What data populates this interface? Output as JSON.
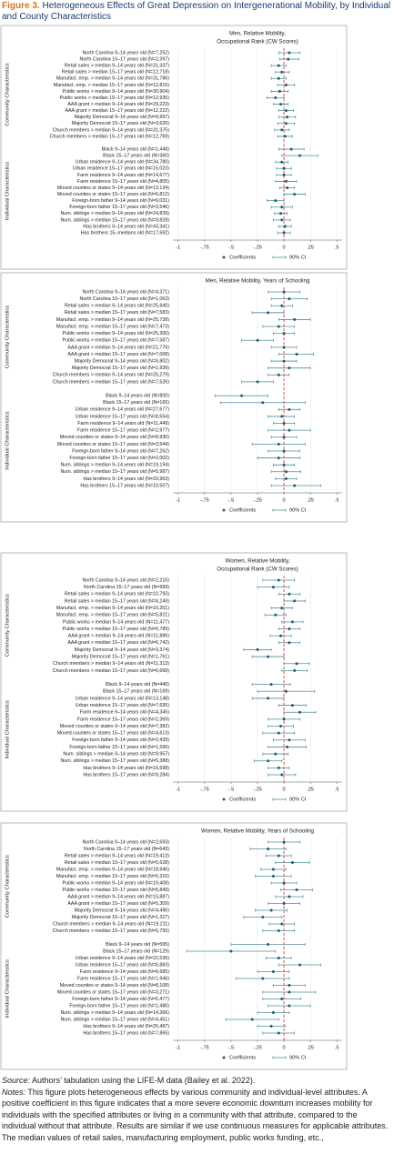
{
  "figure": {
    "label": "Figure 3.",
    "title": "Heterogeneous Effects of Great Depression on Intergenerational Mobility, by Individual and County Characteristics"
  },
  "chart_data": [
    {
      "type": "coefplot",
      "title": [
        "Men, Relative Mobility,",
        "Occupational Rank (CW Scores)"
      ],
      "xlim": [
        -1.05,
        0.55
      ],
      "xticks": [
        -1,
        {
          "value": -0.75,
          "label": "-.75"
        },
        {
          "value": -0.5,
          "label": "-.5"
        },
        {
          "value": -0.25,
          "label": "-.25"
        },
        0,
        {
          "value": 0.25,
          "label": ".25"
        },
        {
          "value": 0.5,
          "label": ".5"
        }
      ],
      "legend": {
        "coefficients": "Coefficients",
        "ci": "90% CI"
      },
      "zero_line": true,
      "color": "#1f5e6e",
      "ci_color": "#4f8f98",
      "groups": [
        {
          "name": "Community Characteristics",
          "categories": [
            "North Carolina 9–14 years old (N=7,252)",
            "North Carolina 15–17 years old (N=2,397)",
            "Retail sales > median 9–14 years old (N=31,337)",
            "Retail sales > median 15–17 years old (N=12,718)",
            "Manufact. emp. > median 9–14 years old (N=31,786)",
            "Manufact. emp. > median 15–17 years old (N=12,815)",
            "Public works > median 9–14 years old (N=30,904)",
            "Public works > median 15–17 years old (N=12,935)",
            "AAA grant > median 9–14 years old (N=29,223)",
            "AAA grant > median 15–17 years old (N=12,222)",
            "Majority Democrat 9–14 years old (N=9,997)",
            "Majority Democrat 15–17 years old (N=3,620)",
            "Church members > median 9–14 years old (N=31,375)",
            "Church members > median 15–17 years old (N=12,769)"
          ],
          "values": [
            0.05,
            0.04,
            -0.05,
            -0.02,
            -0.05,
            0.02,
            -0.04,
            -0.08,
            -0.03,
            0.02,
            0.03,
            0.02,
            -0.02,
            0.01
          ],
          "ci_low": [
            -0.05,
            -0.04,
            -0.12,
            -0.08,
            -0.12,
            -0.06,
            -0.12,
            -0.16,
            -0.1,
            -0.05,
            -0.05,
            -0.06,
            -0.09,
            -0.06
          ],
          "ci_high": [
            0.15,
            0.14,
            0.02,
            0.05,
            0.02,
            0.1,
            0.04,
            0.0,
            0.04,
            0.09,
            0.11,
            0.1,
            0.05,
            0.08
          ]
        },
        {
          "name": "Individual Characteristics",
          "categories": [
            "Black 9–14 years old (N=1,448)",
            "Black 15–17 years old (N=360)",
            "Urban residence 9–14 years old (N=34,780)",
            "Urban residence 15–17 years old (N=15,023)",
            "Farm residence 9–14 years old (N=14,677)",
            "Farm residence 15–17 years old (N=4,805)",
            "Moved counties or states 9–14 years old (N=13,134)",
            "Moved counties or states 15–17 years old (N=6,812)",
            "Foreign-born father 9–14 years old (N=9,031)",
            "Foreign-born father 15–17 years old (N=3,546)",
            "Num. siblings > median 9–14 years old (N=24,839)",
            "Num. siblings > median 15–17 years old (N=9,828)",
            "Has brothers 9–14 years old (N=43,341)",
            "Has brothers 15–medians old (N=17,692)"
          ],
          "values": [
            0.07,
            0.15,
            -0.02,
            0.0,
            0.0,
            0.02,
            0.03,
            0.1,
            -0.08,
            -0.02,
            -0.03,
            -0.02,
            0.01,
            0.0
          ],
          "ci_low": [
            -0.05,
            -0.02,
            -0.08,
            -0.07,
            -0.07,
            -0.08,
            -0.04,
            0.0,
            -0.16,
            -0.12,
            -0.09,
            -0.1,
            -0.05,
            -0.06
          ],
          "ci_high": [
            0.19,
            0.32,
            0.04,
            0.07,
            0.07,
            0.12,
            0.1,
            0.2,
            0.0,
            0.08,
            0.03,
            0.06,
            0.07,
            0.06
          ]
        }
      ]
    },
    {
      "type": "coefplot",
      "title": [
        "Men, Relative Mobility, Years of Schooling"
      ],
      "xlim": [
        -1.05,
        0.55
      ],
      "xticks": [
        -1,
        {
          "value": -0.75,
          "label": "-.75"
        },
        {
          "value": -0.5,
          "label": "-.5"
        },
        {
          "value": -0.25,
          "label": "-.25"
        },
        0,
        {
          "value": 0.25,
          "label": ".25"
        },
        {
          "value": 0.5,
          "label": ".5"
        }
      ],
      "legend": {
        "coefficients": "Coefficients",
        "ci": "90% CI"
      },
      "zero_line": true,
      "color": "#1f5e6e",
      "ci_color": "#4f8f98",
      "groups": [
        {
          "name": "Community Characteristics",
          "categories": [
            "North Carolina 9–14 years old (N=4,371)",
            "North Carolina 15–17 years old (N=1,063)",
            "Retail sales > median 9–14 years old (N=25,840)",
            "Retail sales > median 15–17 years old (N=7,583)",
            "Manufact. emp. > median 9–14 years old (N=25,738)",
            "Manufact. emp. > median 15–17 years old (N=7,473)",
            "Public works > median 9–14 years old (N=25,300)",
            "Public works > median 15–17 years old (N=7,587)",
            "AAA grant > median 9–14 years old (N=21,776)",
            "AAA grant > median 15–17 years old (N=7,008)",
            "Majority Democrat 9–14 years old (N=6,802)",
            "Majority Democrat 15–17 years old (N=1,939)",
            "Church members > median 9–14 years old (N=25,279)",
            "Church members > median 15–17 years old (N=7,526)"
          ],
          "values": [
            0.0,
            0.05,
            -0.02,
            -0.15,
            0.1,
            -0.05,
            0.0,
            -0.25,
            0.0,
            0.12,
            0.0,
            0.05,
            -0.05,
            -0.25
          ],
          "ci_low": [
            -0.15,
            -0.12,
            -0.12,
            -0.3,
            -0.05,
            -0.2,
            -0.1,
            -0.4,
            -0.12,
            -0.05,
            -0.12,
            -0.15,
            -0.15,
            -0.4
          ],
          "ci_high": [
            0.15,
            0.22,
            0.08,
            0.0,
            0.25,
            0.1,
            0.1,
            -0.1,
            0.12,
            0.28,
            0.12,
            0.25,
            0.05,
            -0.1
          ]
        },
        {
          "name": "Individual Characteristics",
          "categories": [
            "Black 9–14 years old (N=800)",
            "Black 15–17 years old (N=165)",
            "Urban residence 9–14 years old (N=27,677)",
            "Urban residence 15–17 years old (N=8,554)",
            "Farm residence 9–14 years old (N=11,449)",
            "Farm residence 15–17 years old (N=2,977)",
            "Moved counties or states 9–14 years old (N=8,930)",
            "Moved counties or states 15–17 years old (N=3,544)",
            "Foreign-born father 9–14 years old (N=7,262)",
            "Foreign-born father 15–17 years old (N=2,002)",
            "Num. siblings > median 9–14 years old (N=19,194)",
            "Num. siblings > median 15–17 years old (N=5,987)",
            "Has brothers 9–14 years old (N=33,963)",
            "Has brothers 15–17 years old (N=10,507)"
          ],
          "values": [
            -0.4,
            -0.2,
            0.05,
            -0.02,
            0.0,
            0.05,
            0.0,
            -0.05,
            0.0,
            -0.05,
            0.0,
            0.02,
            0.02,
            0.1
          ],
          "ci_low": [
            -0.65,
            -0.6,
            -0.05,
            -0.15,
            -0.1,
            -0.15,
            -0.12,
            -0.3,
            -0.15,
            -0.25,
            -0.1,
            -0.12,
            -0.08,
            -0.12
          ],
          "ci_high": [
            -0.15,
            0.2,
            0.15,
            0.1,
            0.1,
            0.25,
            0.12,
            0.2,
            0.15,
            0.15,
            0.1,
            0.16,
            0.12,
            0.35
          ]
        }
      ]
    },
    {
      "type": "coefplot",
      "title": [
        "Women, Relative Mobility,",
        "Occupational Rank (CW Scores)"
      ],
      "xlim": [
        -1.05,
        0.55
      ],
      "xticks": [
        -1,
        {
          "value": -0.75,
          "label": "-.75"
        },
        {
          "value": -0.5,
          "label": "-.5"
        },
        {
          "value": -0.25,
          "label": "-.25"
        },
        0,
        {
          "value": 0.25,
          "label": ".25"
        },
        {
          "value": 0.5,
          "label": ".5"
        }
      ],
      "legend": {
        "coefficients": "Coefficients",
        "ci": "90% CI"
      },
      "zero_line": true,
      "color": "#1f5e6e",
      "ci_color": "#4f8f98",
      "groups": [
        {
          "name": "Community Characteristics",
          "categories": [
            "North Carolina 9–14 years old (N=2,216)",
            "North Carolina 15–17 years old (N=999)",
            "Retail sales > median 9–14 years old (N=10,793)",
            "Retail sales > median 15–17 years old (N=6,249)",
            "Manufact. emp. > median 9–14 years old (N=10,201)",
            "Manufact. emp. > median 15–17 years old (N=5,821)",
            "Public works > median 9–14 years old (N=11,477)",
            "Public works > median 15–17 years old (N=6,789)",
            "AAA grant > median 9–14 years old (N=11,886)",
            "AAA grant > median 15–17 years old (N=6,742)",
            "Majority Democrat 9–14 years old (N=3,374)",
            "Majority Democrat 15–17 years old (N=1,761)",
            "Church members > median 9–14 years old (N=11,313)",
            "Church members > median 15–17 years old (N=6,668)"
          ],
          "values": [
            -0.05,
            -0.1,
            0.05,
            0.1,
            -0.02,
            -0.08,
            0.08,
            0.05,
            -0.03,
            0.05,
            -0.25,
            -0.15,
            0.12,
            0.1
          ],
          "ci_low": [
            -0.2,
            -0.25,
            -0.05,
            0.0,
            -0.12,
            -0.18,
            -0.02,
            -0.05,
            -0.13,
            -0.05,
            -0.38,
            -0.3,
            0.0,
            -0.02
          ],
          "ci_high": [
            0.1,
            0.05,
            0.15,
            0.2,
            0.08,
            0.02,
            0.18,
            0.15,
            0.07,
            0.15,
            -0.12,
            0.0,
            0.24,
            0.22
          ]
        },
        {
          "name": "Individual Characteristics",
          "categories": [
            "Black 9–14 years old (N=440)",
            "Black 15–17 years old (N=169)",
            "Urban residence 9–14 years old (N=13,148)",
            "Urban residence 15–17 years old (N=7,695)",
            "Farm residence 9–14 years old (N=4,345)",
            "Farm residence 15–17 years old (N=2,369)",
            "Moved counties or states 9–14 years old (N=7,382)",
            "Moved counties or states 15–17 years old (N=4,613)",
            "Foreign-born father 9–14 years old (N=2,439)",
            "Foreign-born father 15–17 years old (N=1,596)",
            "Num. siblings > median 9–14 years old (N=9,957)",
            "Num. siblings > median 15–17 years old (N=5,388)",
            "Has brothers 9–14 years old (N=16,698)",
            "Has brothers 15–17 years old (N=9,284)"
          ],
          "values": [
            -0.12,
            0.02,
            -0.15,
            0.08,
            0.15,
            0.0,
            -0.03,
            -0.05,
            0.05,
            0.03,
            -0.08,
            -0.15,
            -0.05,
            -0.02
          ],
          "ci_low": [
            -0.3,
            -0.25,
            -0.3,
            -0.05,
            0.0,
            -0.15,
            -0.15,
            -0.2,
            -0.1,
            -0.15,
            -0.2,
            -0.28,
            -0.15,
            -0.15
          ],
          "ci_high": [
            0.06,
            0.29,
            0.0,
            0.21,
            0.3,
            0.15,
            0.09,
            0.1,
            0.2,
            0.21,
            0.04,
            -0.02,
            0.05,
            0.11
          ]
        }
      ]
    },
    {
      "type": "coefplot",
      "title": [
        "Women, Relative Mobility, Years of Schooling"
      ],
      "xlim": [
        -1.05,
        0.55
      ],
      "xticks": [
        -1,
        {
          "value": -0.75,
          "label": "-.75"
        },
        {
          "value": -0.5,
          "label": "-.5"
        },
        {
          "value": -0.25,
          "label": "-.25"
        },
        0,
        {
          "value": 0.25,
          "label": ".25"
        },
        {
          "value": 0.5,
          "label": ".5"
        }
      ],
      "legend": {
        "coefficients": "Coefficients",
        "ci": "90% CI"
      },
      "zero_line": true,
      "color": "#1f5e6e",
      "ci_color": "#4f8f98",
      "groups": [
        {
          "name": "Community Characteristics",
          "categories": [
            "North Carolina 9–14 years old (N=2,693)",
            "North Carolina 15–17 years old (N=643)",
            "Retail sales > median 9–14 years old (N=19,413)",
            "Retail sales > median 15–17 years old (N=5,628)",
            "Manufact. emp. > median 9–14 years old (N=18,946)",
            "Manufact. emp. > median 15–17 years old (N=5,316)",
            "Public works > median 9–14 years old (N=19,408)",
            "Public works > median 15–17 years old (N=5,849)",
            "AAA grant > median 9–14 years old (N=15,887)",
            "AAA grant > median 15–17 years old (N=5,309)",
            "Majority Democrat 9–14 years old (N=4,496)",
            "Majority Democrat 15–17 years old (N=1,327)",
            "Church members > median 9–14 years old (N=19,211)",
            "Church members > median 15–17 years old (N=5,755)"
          ],
          "values": [
            0.0,
            -0.15,
            -0.05,
            0.08,
            -0.1,
            -0.1,
            0.0,
            0.12,
            0.05,
            0.0,
            -0.12,
            -0.2,
            -0.02,
            -0.05
          ],
          "ci_low": [
            -0.15,
            -0.32,
            -0.17,
            -0.08,
            -0.22,
            -0.27,
            -0.12,
            -0.03,
            -0.08,
            -0.15,
            -0.27,
            -0.38,
            -0.14,
            -0.2
          ],
          "ci_high": [
            0.15,
            0.02,
            0.07,
            0.24,
            0.02,
            0.07,
            0.12,
            0.27,
            0.18,
            0.15,
            0.03,
            -0.02,
            0.1,
            0.1
          ]
        },
        {
          "name": "Individual Characteristics",
          "categories": [
            "Black 9–14 years old (N=595)",
            "Black 15–17 years old (N=129)",
            "Urban residence 9–14 years old (N=22,535)",
            "Urban residence 15–17 years old (N=6,883)",
            "Farm residence 9–14 years old (N=6,685)",
            "Farm residence 15–17 years old (N=1,946)",
            "Moved counties or states 9–14 years old (N=8,108)",
            "Moved counties or states 15–17 years old (N=3,271)",
            "Foreign-born father 9–14 years old (N=5,477)",
            "Foreign-born father 15–17 years old (N=1,486)",
            "Num. siblings > median 9–14 years old (N=14,366)",
            "Num. siblings > median 15–17 years old (N=4,451)",
            "Has brothers 9–14 years old (N=25,487)",
            "Has brothers 15–17 years old (N=7,865)"
          ],
          "values": [
            -0.15,
            -0.5,
            -0.05,
            0.15,
            -0.1,
            -0.2,
            0.05,
            0.05,
            -0.02,
            0.05,
            -0.1,
            -0.3,
            -0.12,
            -0.05
          ],
          "ci_low": [
            -0.5,
            -0.92,
            -0.17,
            -0.05,
            -0.25,
            -0.45,
            -0.1,
            -0.2,
            -0.2,
            -0.15,
            -0.25,
            -0.55,
            -0.25,
            -0.2
          ],
          "ci_high": [
            0.2,
            -0.08,
            0.07,
            0.35,
            0.05,
            0.05,
            0.2,
            0.3,
            0.16,
            0.25,
            0.05,
            -0.05,
            0.01,
            0.1
          ]
        }
      ]
    }
  ],
  "source": {
    "label": "Source:",
    "text": "Authors’ tabulation using the LIFE-M data (Bailey et al. 2022)."
  },
  "notes": {
    "label": "Notes:",
    "text": "This figure plots heterogeneous effects by various community and individual-level attributes. A positive coefficient in this figure indicates that a more severe economic downturn increases mobility for individuals with the specified attributes or living in a community with that attribute, compared to the individual without that attribute. Results are similar if we use continuous measures for applicable attributes. The median values of retail sales, manufacturing employment, public works funding, etc.,"
  }
}
